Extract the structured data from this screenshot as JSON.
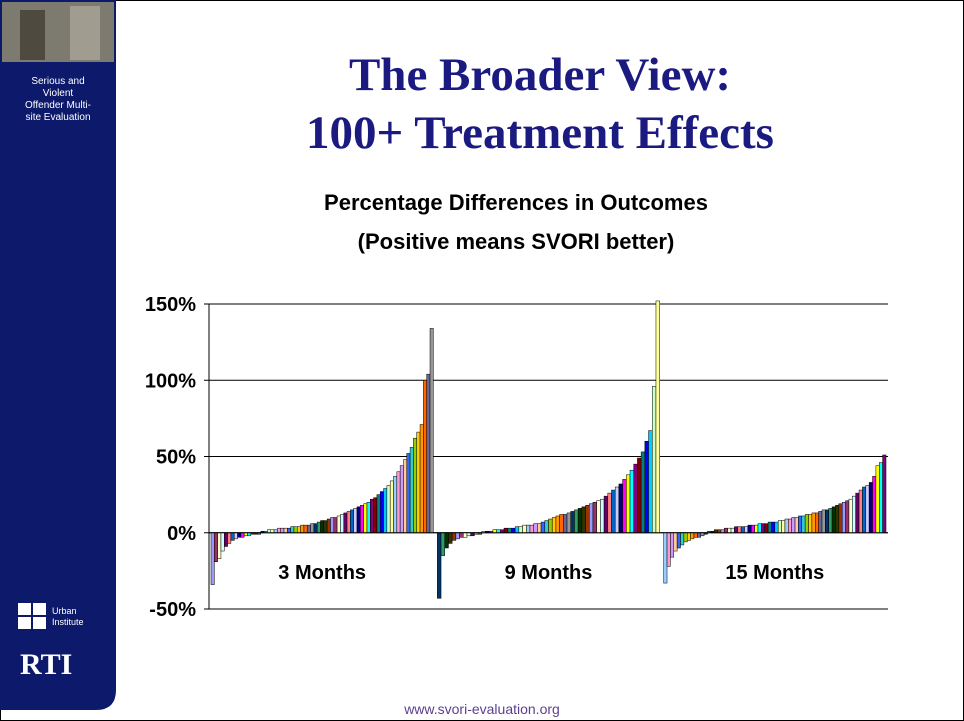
{
  "slide": {
    "title_lines": [
      "The Broader View:",
      "100+ Treatment Effects"
    ],
    "sidebar_text": [
      "Serious and",
      "Violent",
      "Offender Multi-",
      "site Evaluation"
    ],
    "logo_urban": [
      "Urban",
      "Institute"
    ],
    "logo_rti": "RTI",
    "footer": "www.svori-evaluation.org"
  },
  "chart_data": {
    "type": "bar",
    "title": "Percentage Differences in Outcomes",
    "subtitle": "(Positive means SVORI better)",
    "groups": [
      {
        "name": "3 Months",
        "values": [
          -34,
          -19,
          -17,
          -12,
          -9,
          -7,
          -5,
          -4,
          -3,
          -3,
          -2,
          -2,
          -1,
          -1,
          -1,
          1,
          1,
          2,
          2,
          2,
          3,
          3,
          3,
          3,
          4,
          4,
          4,
          5,
          5,
          5,
          6,
          6,
          7,
          8,
          8,
          9,
          10,
          10,
          11,
          12,
          13,
          14,
          15,
          16,
          17,
          18,
          19,
          20,
          22,
          23,
          25,
          27,
          29,
          31,
          34,
          37,
          40,
          44,
          48,
          52,
          56,
          62,
          66,
          71,
          100,
          104,
          134
        ]
      },
      {
        "name": "9 Months",
        "values": [
          -43,
          -15,
          -10,
          -7,
          -5,
          -4,
          -3,
          -3,
          -2,
          -2,
          -1,
          -1,
          1,
          1,
          1,
          2,
          2,
          2,
          3,
          3,
          3,
          4,
          4,
          5,
          5,
          5,
          6,
          6,
          7,
          8,
          9,
          10,
          11,
          12,
          12,
          13,
          14,
          15,
          16,
          17,
          18,
          19,
          20,
          21,
          22,
          24,
          26,
          28,
          30,
          32,
          35,
          38,
          41,
          45,
          49,
          53,
          60,
          67,
          96,
          152
        ]
      },
      {
        "name": "15 Months",
        "values": [
          -33,
          -22,
          -16,
          -12,
          -10,
          -8,
          -6,
          -5,
          -4,
          -3,
          -3,
          -2,
          -1,
          1,
          1,
          2,
          2,
          2,
          3,
          3,
          3,
          4,
          4,
          4,
          4,
          5,
          5,
          5,
          6,
          6,
          6,
          7,
          7,
          7,
          8,
          8,
          9,
          9,
          10,
          10,
          11,
          11,
          12,
          12,
          13,
          13,
          14,
          15,
          15,
          16,
          17,
          18,
          19,
          20,
          21,
          22,
          24,
          26,
          28,
          30,
          31,
          33,
          37,
          44,
          46,
          51
        ]
      }
    ],
    "ylim": [
      -50,
      150
    ],
    "yticks": [
      {
        "value": -50,
        "label": "-50%"
      },
      {
        "value": 0,
        "label": "0%"
      },
      {
        "value": 50,
        "label": "50%"
      },
      {
        "value": 100,
        "label": "100%"
      },
      {
        "value": 150,
        "label": "150%"
      }
    ],
    "grid": true,
    "colors": [
      "#9999ff",
      "#993366",
      "#ffffcc",
      "#ccffff",
      "#660066",
      "#ff8080",
      "#0066cc",
      "#ccccff",
      "#000080",
      "#ff00ff",
      "#ffff00",
      "#00ffff",
      "#800080",
      "#800000",
      "#008080",
      "#0000ff",
      "#00ccff",
      "#ccffcc",
      "#ffff99",
      "#99ccff",
      "#ff99cc",
      "#cc99ff",
      "#ffcc99",
      "#3366ff",
      "#33cccc",
      "#99cc00",
      "#ffcc00",
      "#ff9900",
      "#ff6600",
      "#666699",
      "#969696",
      "#003366",
      "#339966",
      "#003300",
      "#333300",
      "#993300"
    ]
  }
}
